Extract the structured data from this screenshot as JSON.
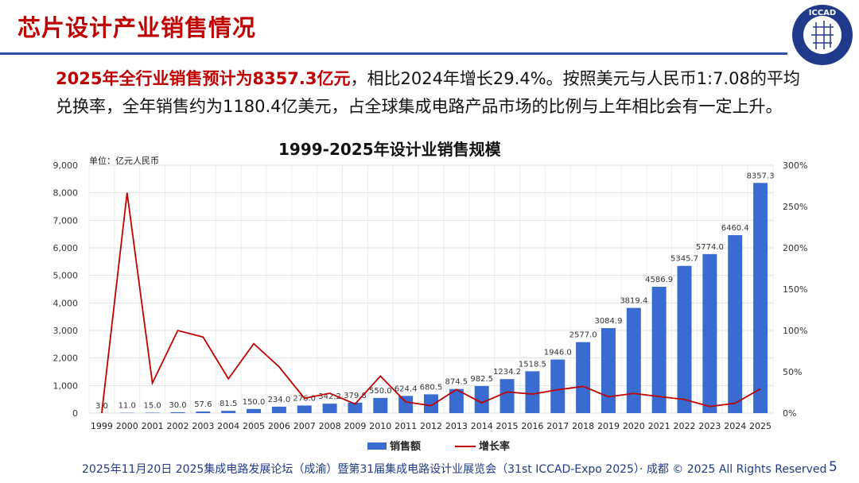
{
  "header": {
    "title": "芯片设计产业销售情况",
    "logo_text": "ICCAD"
  },
  "intro": {
    "highlight": "2025年全行业销售预计为8357.3亿元",
    "rest": "，相比2024年增长29.4%。按照美元与人民币1:7.08的平均兑换率，全年销售约为1180.4亿美元，占全球集成电路产品市场的比例与上年相比会有一定上升。"
  },
  "chart_data": {
    "type": "bar+line",
    "title": "1999-2025年设计业销售规模",
    "unit_label": "单位：亿元人民币",
    "categories": [
      "1999",
      "2000",
      "2001",
      "2002",
      "2003",
      "2004",
      "2005",
      "2006",
      "2007",
      "2008",
      "2009",
      "2010",
      "2011",
      "2012",
      "2013",
      "2014",
      "2015",
      "2016",
      "2017",
      "2018",
      "2019",
      "2020",
      "2021",
      "2022",
      "2023",
      "2024",
      "2025"
    ],
    "series": [
      {
        "name": "销售额",
        "type": "bar",
        "axis": "left",
        "color": "#3a6bd1",
        "values": [
          3.0,
          11.0,
          15.0,
          30.0,
          57.6,
          81.5,
          150.0,
          234.0,
          276.0,
          342.2,
          379.8,
          550.0,
          624.4,
          680.5,
          874.5,
          982.5,
          1234.2,
          1518.5,
          1946.0,
          2577.0,
          3084.9,
          3819.4,
          4586.9,
          5345.7,
          5774.0,
          6460.4,
          8357.3
        ],
        "labels": [
          "3.0",
          "11.0",
          "15.0",
          "30.0",
          "57.6",
          "81.5",
          "150.0",
          "234.0",
          "276.0",
          "342.2",
          "379.8",
          "550.0",
          "624.4",
          "680.5",
          "874.5",
          "982.5",
          "1234.2",
          "1518.5",
          "1946.0",
          "2577.0",
          "3084.9",
          "3819.4",
          "4586.9",
          "5345.7",
          "5774.0",
          "6460.4",
          "8357.3"
        ]
      },
      {
        "name": "增长率",
        "type": "line",
        "axis": "right",
        "color": "#c00000",
        "values": [
          0,
          266.7,
          36.4,
          100,
          92,
          41.5,
          84,
          56,
          17.9,
          24,
          11,
          44.8,
          13.5,
          9,
          28.5,
          12.4,
          25.6,
          23,
          28.2,
          32.4,
          19.7,
          23.8,
          20.1,
          16.5,
          8,
          11.9,
          29.4
        ]
      }
    ],
    "left_axis": {
      "range": [
        0,
        9000
      ],
      "ticks": [
        "0",
        "1,000",
        "2,000",
        "3,000",
        "4,000",
        "5,000",
        "6,000",
        "7,000",
        "8,000",
        "9,000"
      ]
    },
    "right_axis": {
      "range": [
        0,
        300
      ],
      "ticks": [
        "0%",
        "50%",
        "100%",
        "150%",
        "200%",
        "250%",
        "300%"
      ]
    },
    "grid": true,
    "legend": "bottom"
  },
  "footer": {
    "text": "2025年11月20日 2025集成电路发展论坛（成渝）暨第31届集成电路设计业展览会（31st ICCAD-Expo 2025）· 成都 © 2025 All Rights Reserved",
    "page": "5"
  }
}
